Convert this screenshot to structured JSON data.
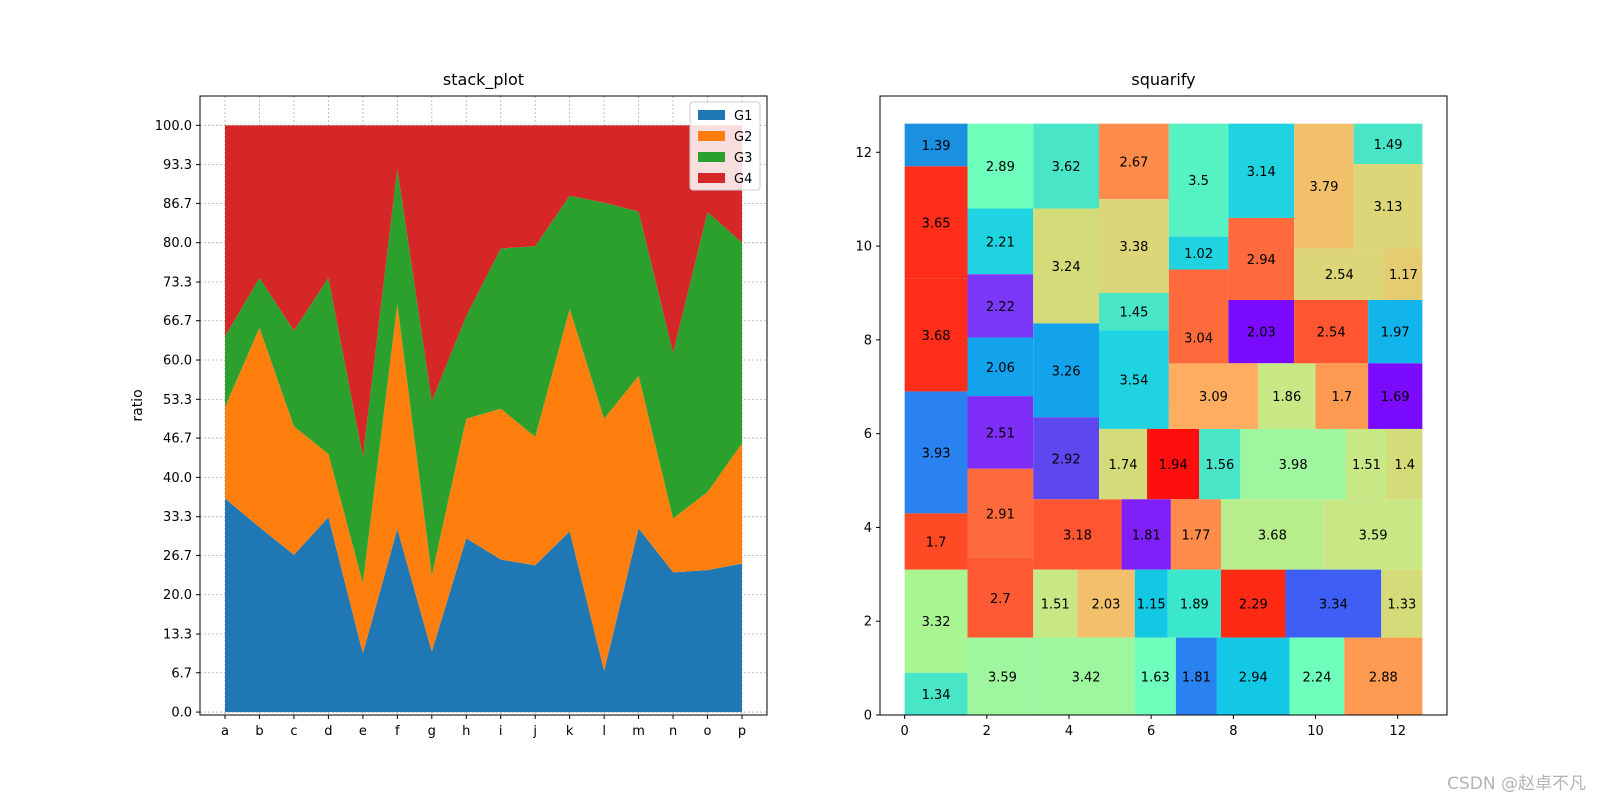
{
  "chart_data": [
    {
      "type": "area",
      "stacked": true,
      "title": "stack_plot",
      "xlabel": "",
      "ylabel": "ratio",
      "categories": [
        "a",
        "b",
        "c",
        "d",
        "e",
        "f",
        "g",
        "h",
        "i",
        "j",
        "k",
        "l",
        "m",
        "n",
        "o",
        "p"
      ],
      "yticks": [
        "0.0",
        "6.7",
        "13.3",
        "20.0",
        "26.7",
        "33.3",
        "40.0",
        "46.7",
        "53.3",
        "60.0",
        "66.7",
        "73.3",
        "80.0",
        "86.7",
        "93.3",
        "100.0"
      ],
      "ylim": [
        -0.5,
        105
      ],
      "grid": true,
      "legend_position": "upper right",
      "series": [
        {
          "name": "G1",
          "color": "#1f77b4",
          "values": [
            36.4,
            31.5,
            26.8,
            33.2,
            10.0,
            31.2,
            10.3,
            29.6,
            26.0,
            25.0,
            30.8,
            7.0,
            31.3,
            23.8,
            24.2,
            25.3
          ]
        },
        {
          "name": "G2",
          "color": "#ff7f0e",
          "values": [
            15.6,
            34.0,
            21.9,
            10.8,
            12.0,
            38.4,
            13.0,
            20.4,
            25.7,
            21.9,
            37.9,
            43.0,
            26.0,
            9.2,
            13.3,
            20.5
          ]
        },
        {
          "name": "G3",
          "color": "#2ca02c",
          "values": [
            12.0,
            8.5,
            16.3,
            30.0,
            21.5,
            23.0,
            29.7,
            17.5,
            27.3,
            32.5,
            19.3,
            36.8,
            28.0,
            28.2,
            47.7,
            34.2
          ]
        },
        {
          "name": "G4",
          "color": "#d62728",
          "values": [
            36.0,
            26.0,
            35.0,
            26.0,
            56.5,
            7.4,
            47.0,
            32.5,
            21.0,
            20.6,
            12.0,
            13.2,
            14.7,
            38.8,
            14.8,
            20.0
          ]
        }
      ]
    },
    {
      "type": "treemap",
      "title": "squarify",
      "xlim": [
        -0.6,
        13.2
      ],
      "ylim": [
        0,
        13.2
      ],
      "xticks": [
        "0",
        "2",
        "4",
        "6",
        "8",
        "10",
        "12"
      ],
      "yticks": [
        "0",
        "2",
        "4",
        "6",
        "8",
        "10",
        "12"
      ],
      "cells": [
        {
          "label": "1.39",
          "x": 0.0,
          "y": 11.7,
          "w": 1.53,
          "h": 0.91,
          "color": "#1b8fe0"
        },
        {
          "label": "3.65",
          "x": 0.0,
          "y": 9.3,
          "w": 1.53,
          "h": 2.4,
          "color": "#ff2d1a"
        },
        {
          "label": "3.68",
          "x": 0.0,
          "y": 6.9,
          "w": 1.53,
          "h": 2.4,
          "color": "#ff2d1a"
        },
        {
          "label": "3.93",
          "x": 0.0,
          "y": 4.3,
          "w": 1.53,
          "h": 2.6,
          "color": "#2a82f0"
        },
        {
          "label": "1.7",
          "x": 0.0,
          "y": 3.1,
          "w": 1.53,
          "h": 1.2,
          "color": "#ff4a26"
        },
        {
          "label": "3.32",
          "x": 0.0,
          "y": 0.9,
          "w": 1.53,
          "h": 2.2,
          "color": "#a8f591"
        },
        {
          "label": "1.34",
          "x": 0.0,
          "y": 0.0,
          "w": 1.53,
          "h": 0.9,
          "color": "#48e6c7"
        },
        {
          "label": "2.89",
          "x": 1.53,
          "y": 10.8,
          "w": 1.6,
          "h": 1.81,
          "color": "#6effbd"
        },
        {
          "label": "2.21",
          "x": 1.53,
          "y": 9.4,
          "w": 1.6,
          "h": 1.4,
          "color": "#1fd3e0"
        },
        {
          "label": "2.22",
          "x": 1.53,
          "y": 8.05,
          "w": 1.6,
          "h": 1.35,
          "color": "#7c38f8"
        },
        {
          "label": "2.06",
          "x": 1.53,
          "y": 6.8,
          "w": 1.6,
          "h": 1.25,
          "color": "#12a3ec"
        },
        {
          "label": "2.51",
          "x": 1.53,
          "y": 5.25,
          "w": 1.6,
          "h": 1.55,
          "color": "#7f2ef8"
        },
        {
          "label": "2.91",
          "x": 1.53,
          "y": 3.35,
          "w": 1.6,
          "h": 1.9,
          "color": "#ff6a3d"
        },
        {
          "label": "2.7",
          "x": 1.53,
          "y": 1.65,
          "w": 1.6,
          "h": 1.7,
          "color": "#ff5a33"
        },
        {
          "label": "3.59",
          "x": 1.53,
          "y": 0.0,
          "w": 1.7,
          "h": 1.65,
          "color": "#9ef79e"
        },
        {
          "label": "3.62",
          "x": 3.13,
          "y": 10.8,
          "w": 1.6,
          "h": 1.81,
          "color": "#48e6c7"
        },
        {
          "label": "3.24",
          "x": 3.13,
          "y": 8.35,
          "w": 1.6,
          "h": 2.45,
          "color": "#d4dc79"
        },
        {
          "label": "3.26",
          "x": 3.13,
          "y": 6.35,
          "w": 1.6,
          "h": 2.0,
          "color": "#12a3ec"
        },
        {
          "label": "2.92",
          "x": 3.13,
          "y": 4.6,
          "w": 1.6,
          "h": 1.75,
          "color": "#5f47ee"
        },
        {
          "label": "3.18",
          "x": 3.13,
          "y": 3.1,
          "w": 2.15,
          "h": 1.5,
          "color": "#ff5530"
        },
        {
          "label": "1.51",
          "x": 3.13,
          "y": 1.65,
          "w": 1.07,
          "h": 1.45,
          "color": "#c8e885"
        },
        {
          "label": "2.03",
          "x": 4.2,
          "y": 1.65,
          "w": 1.4,
          "h": 1.45,
          "color": "#f2c06a"
        },
        {
          "label": "3.42",
          "x": 3.23,
          "y": 0.0,
          "w": 2.37,
          "h": 1.65,
          "color": "#9ef79e"
        },
        {
          "label": "2.67",
          "x": 4.73,
          "y": 11.0,
          "w": 1.7,
          "h": 1.61,
          "color": "#ff8c4a"
        },
        {
          "label": "3.38",
          "x": 4.73,
          "y": 9.0,
          "w": 1.7,
          "h": 2.0,
          "color": "#dcd679"
        },
        {
          "label": "1.45",
          "x": 4.73,
          "y": 8.2,
          "w": 1.7,
          "h": 0.8,
          "color": "#48e6c7"
        },
        {
          "label": "3.54",
          "x": 4.73,
          "y": 6.1,
          "w": 1.7,
          "h": 2.1,
          "color": "#1fd3e0"
        },
        {
          "label": "1.74",
          "x": 4.73,
          "y": 4.6,
          "w": 1.17,
          "h": 1.5,
          "color": "#d4dc79"
        },
        {
          "label": "1.94",
          "x": 5.9,
          "y": 4.6,
          "w": 1.27,
          "h": 1.5,
          "color": "#ff0e0e"
        },
        {
          "label": "1.81",
          "x": 5.28,
          "y": 3.1,
          "w": 1.2,
          "h": 1.5,
          "color": "#7f20f8"
        },
        {
          "label": "1.15",
          "x": 5.6,
          "y": 1.65,
          "w": 0.8,
          "h": 1.45,
          "color": "#12c8e4"
        },
        {
          "label": "1.63",
          "x": 5.6,
          "y": 0.0,
          "w": 1.0,
          "h": 1.65,
          "color": "#6effbd"
        },
        {
          "label": "3.5",
          "x": 6.43,
          "y": 10.2,
          "w": 1.45,
          "h": 2.41,
          "color": "#55f2c3"
        },
        {
          "label": "1.02",
          "x": 6.43,
          "y": 9.5,
          "w": 1.45,
          "h": 0.7,
          "color": "#1fd3e0"
        },
        {
          "label": "3.04",
          "x": 6.43,
          "y": 6.6,
          "w": 1.45,
          "h": 2.9,
          "color": "#ff6a3d"
        },
        {
          "label": "3.09",
          "x": 6.43,
          "y": 6.1,
          "w": 0.0,
          "h": 0.0,
          "color": "#ffad60"
        },
        {
          "label": "1.56",
          "x": 7.17,
          "y": 4.6,
          "w": 1.0,
          "h": 1.5,
          "color": "#48e6c7"
        },
        {
          "label": "1.77",
          "x": 6.48,
          "y": 3.1,
          "w": 1.22,
          "h": 1.5,
          "color": "#ff8c4a"
        },
        {
          "label": "1.89",
          "x": 6.4,
          "y": 1.65,
          "w": 1.3,
          "h": 1.45,
          "color": "#3ae6cc"
        },
        {
          "label": "1.81",
          "x": 6.6,
          "y": 0.0,
          "w": 1.0,
          "h": 1.65,
          "color": "#2a82f0"
        },
        {
          "label": "3.14",
          "x": 7.88,
          "y": 10.6,
          "w": 1.6,
          "h": 2.01,
          "color": "#1fd3e0"
        },
        {
          "label": "2.94",
          "x": 7.88,
          "y": 8.85,
          "w": 1.6,
          "h": 1.75,
          "color": "#ff6a3d"
        },
        {
          "label": "2.03",
          "x": 7.88,
          "y": 7.5,
          "w": 1.6,
          "h": 1.35,
          "color": "#7a0bff"
        },
        {
          "label": "1.86",
          "x": 8.6,
          "y": 6.1,
          "w": 1.4,
          "h": 1.4,
          "color": "#c8e885"
        },
        {
          "label": "3.98",
          "x": 8.17,
          "y": 4.6,
          "w": 2.57,
          "h": 1.5,
          "color": "#9ef79e"
        },
        {
          "label": "3.68",
          "x": 7.7,
          "y": 3.1,
          "w": 2.5,
          "h": 1.5,
          "color": "#b7ee8b"
        },
        {
          "label": "2.29",
          "x": 7.7,
          "y": 1.65,
          "w": 1.57,
          "h": 1.45,
          "color": "#ff2a14"
        },
        {
          "label": "2.94",
          "x": 7.6,
          "y": 0.0,
          "w": 1.77,
          "h": 1.65,
          "color": "#12c8e4"
        },
        {
          "label": "3.79",
          "x": 9.48,
          "y": 9.95,
          "w": 1.45,
          "h": 2.66,
          "color": "#f2c06a"
        },
        {
          "label": "2.54",
          "x": 9.48,
          "y": 8.85,
          "w": 2.2,
          "h": 1.1,
          "color": "#dcd679"
        },
        {
          "label": "2.54",
          "x": 9.48,
          "y": 7.5,
          "w": 1.8,
          "h": 1.35,
          "color": "#ff5530"
        },
        {
          "label": "1.7",
          "x": 10.0,
          "y": 6.1,
          "w": 1.28,
          "h": 1.4,
          "color": "#ff9a52"
        },
        {
          "label": "1.51",
          "x": 10.74,
          "y": 4.6,
          "w": 1.0,
          "h": 1.5,
          "color": "#c8e885"
        },
        {
          "label": "3.59",
          "x": 10.2,
          "y": 3.1,
          "w": 2.4,
          "h": 1.5,
          "color": "#c8e885"
        },
        {
          "label": "3.34",
          "x": 9.27,
          "y": 1.65,
          "w": 2.33,
          "h": 1.45,
          "color": "#3e5ef5"
        },
        {
          "label": "2.24",
          "x": 9.37,
          "y": 0.0,
          "w": 1.33,
          "h": 1.65,
          "color": "#6effbd"
        },
        {
          "label": "1.49",
          "x": 10.93,
          "y": 11.75,
          "w": 1.67,
          "h": 0.86,
          "color": "#48e6c7"
        },
        {
          "label": "3.13",
          "x": 10.93,
          "y": 9.95,
          "w": 1.67,
          "h": 1.8,
          "color": "#dcd679"
        },
        {
          "label": "1.17",
          "x": 11.68,
          "y": 8.85,
          "w": 0.92,
          "h": 1.1,
          "color": "#e6cc70"
        },
        {
          "label": "1.97",
          "x": 11.28,
          "y": 7.5,
          "w": 1.32,
          "h": 1.35,
          "color": "#12b4ec"
        },
        {
          "label": "1.69",
          "x": 11.28,
          "y": 6.1,
          "w": 1.32,
          "h": 1.4,
          "color": "#7a0bff"
        },
        {
          "label": "1.4",
          "x": 11.74,
          "y": 4.6,
          "w": 0.86,
          "h": 1.5,
          "color": "#d4dc79"
        },
        {
          "label": "1.33",
          "x": 11.6,
          "y": 1.65,
          "w": 1.0,
          "h": 1.45,
          "color": "#d4dc79"
        },
        {
          "label": "2.88",
          "x": 10.7,
          "y": 0.0,
          "w": 1.9,
          "h": 1.65,
          "color": "#ff9a52"
        }
      ]
    }
  ],
  "watermark": "CSDN @赵卓不凡"
}
